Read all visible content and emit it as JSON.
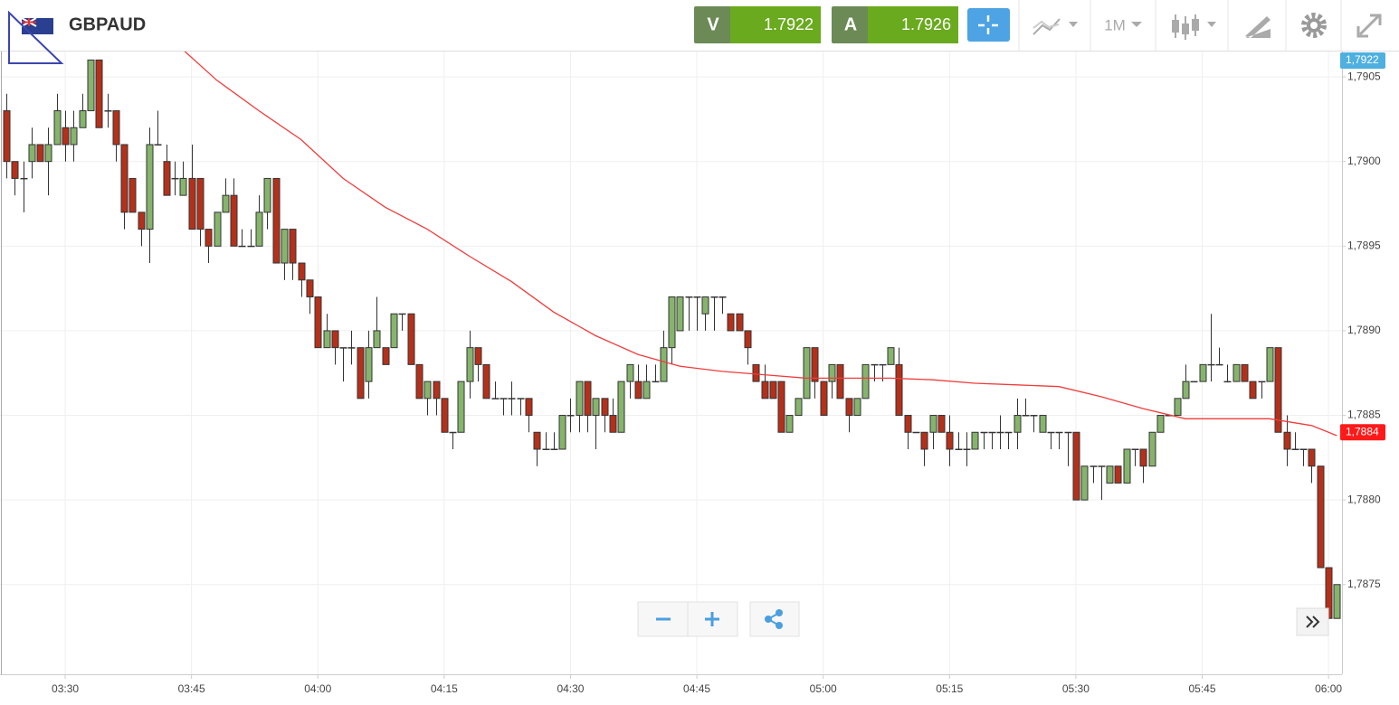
{
  "toolbar": {
    "bid_label": "V",
    "bid": 1.7922,
    "ask_label": "A",
    "ask": 1.7926,
    "timeframe": "1M"
  },
  "chart_data": {
    "type": "candlestick",
    "title": "GBPAUD",
    "up_color": "#86b46c",
    "down_color": "#b5301a",
    "xlim": [
      202.26,
      361.6
    ],
    "ylim": [
      1.78697,
      1.79065
    ],
    "xticks": [
      {
        "value": 210,
        "label": "03:30"
      },
      {
        "value": 225,
        "label": "03:45"
      },
      {
        "value": 240,
        "label": "04:00"
      },
      {
        "value": 255,
        "label": "04:15"
      },
      {
        "value": 270,
        "label": "04:30"
      },
      {
        "value": 285,
        "label": "04:45"
      },
      {
        "value": 300,
        "label": "05:00"
      },
      {
        "value": 315,
        "label": "05:15"
      },
      {
        "value": 330,
        "label": "05:30"
      },
      {
        "value": 345,
        "label": "05:45"
      },
      {
        "value": 360,
        "label": "06:00"
      }
    ],
    "yticks": [
      {
        "value": 1.7875,
        "label": "1,7875"
      },
      {
        "value": 1.788,
        "label": "1,7880"
      },
      {
        "value": 1.7885,
        "label": "1,7885"
      },
      {
        "value": 1.789,
        "label": "1,7890"
      },
      {
        "value": 1.7895,
        "label": "1,7895"
      },
      {
        "value": 1.79,
        "label": "1,7900"
      },
      {
        "value": 1.7905,
        "label": "1,7905"
      }
    ],
    "grid": true,
    "x": [
      203,
      204,
      205,
      206,
      207,
      208,
      209,
      210,
      211,
      212,
      213,
      214,
      215,
      216,
      217,
      218,
      219,
      220,
      221,
      222,
      223,
      224,
      225,
      226,
      227,
      228,
      229,
      230,
      231,
      232,
      233,
      234,
      235,
      236,
      237,
      238,
      239,
      240,
      241,
      242,
      243,
      244,
      245,
      246,
      247,
      248,
      249,
      250,
      251,
      252,
      253,
      254,
      255,
      256,
      257,
      258,
      259,
      260,
      261,
      262,
      263,
      264,
      265,
      266,
      267,
      268,
      269,
      270,
      271,
      272,
      273,
      274,
      275,
      276,
      277,
      278,
      279,
      280,
      281,
      282,
      283,
      284,
      285,
      286,
      287,
      288,
      289,
      290,
      291,
      292,
      293,
      294,
      295,
      296,
      297,
      298,
      299,
      300,
      301,
      302,
      303,
      304,
      305,
      306,
      307,
      308,
      309,
      310,
      311,
      312,
      313,
      314,
      315,
      316,
      317,
      318,
      319,
      320,
      321,
      322,
      323,
      324,
      325,
      326,
      327,
      328,
      329,
      330,
      331,
      332,
      333,
      334,
      335,
      336,
      337,
      338,
      339,
      340,
      341,
      342,
      343,
      344,
      345,
      346,
      347,
      348,
      349,
      350,
      351,
      352,
      353,
      354,
      355,
      356,
      357,
      358,
      359,
      360,
      361
    ],
    "open": [
      1.7903,
      1.79,
      1.7899,
      1.79,
      1.7901,
      1.79,
      1.7901,
      1.7902,
      1.7901,
      1.7902,
      1.7903,
      1.7906,
      1.7903,
      1.7903,
      1.7901,
      1.7899,
      1.7897,
      1.7896,
      1.7901,
      1.79,
      1.7899,
      1.7898,
      1.7899,
      1.7899,
      1.7896,
      1.7895,
      1.7897,
      1.7898,
      1.7895,
      1.7895,
      1.7895,
      1.7897,
      1.7899,
      1.7894,
      1.7896,
      1.7894,
      1.7893,
      1.7892,
      1.7889,
      1.789,
      1.7889,
      1.7889,
      1.7889,
      1.7887,
      1.7889,
      1.7889,
      1.7889,
      1.7891,
      1.7891,
      1.7888,
      1.7886,
      1.7887,
      1.7886,
      1.7884,
      1.7884,
      1.7887,
      1.7889,
      1.7888,
      1.7886,
      1.7886,
      1.7886,
      1.7886,
      1.7886,
      1.7884,
      1.7883,
      1.7883,
      1.7883,
      1.7885,
      1.7885,
      1.7887,
      1.7885,
      1.7886,
      1.7885,
      1.7884,
      1.7887,
      1.7887,
      1.7886,
      1.7887,
      1.7887,
      1.7889,
      1.789,
      1.7892,
      1.7892,
      1.7891,
      1.7892,
      1.7892,
      1.7891,
      1.7891,
      1.789,
      1.7888,
      1.7887,
      1.7887,
      1.7887,
      1.7884,
      1.7885,
      1.7886,
      1.7889,
      1.7887,
      1.7887,
      1.7888,
      1.7886,
      1.7885,
      1.7886,
      1.7888,
      1.7888,
      1.7888,
      1.7888,
      1.7885,
      1.7884,
      1.7884,
      1.7884,
      1.7885,
      1.7884,
      1.7883,
      1.7883,
      1.7883,
      1.7884,
      1.7884,
      1.7884,
      1.7884,
      1.7884,
      1.7885,
      1.7885,
      1.7884,
      1.7884,
      1.7884,
      1.7884,
      1.7884,
      1.788,
      1.7882,
      1.7882,
      1.7881,
      1.7882,
      1.7881,
      1.7883,
      1.7883,
      1.7882,
      1.7884,
      1.7885,
      1.7885,
      1.7886,
      1.7887,
      1.7887,
      1.7888,
      1.7888,
      1.7887,
      1.7887,
      1.7888,
      1.7887,
      1.7887,
      1.7887,
      1.7889,
      1.7884,
      1.7883,
      1.7883,
      1.7883,
      1.7882,
      1.7876,
      1.7873
    ],
    "high": [
      1.7904,
      1.79,
      1.79,
      1.7902,
      1.7901,
      1.7902,
      1.7904,
      1.7903,
      1.7903,
      1.7904,
      1.7906,
      1.7906,
      1.7904,
      1.7903,
      1.7901,
      1.7899,
      1.7897,
      1.7902,
      1.7903,
      1.7901,
      1.79,
      1.79,
      1.7901,
      1.7899,
      1.7896,
      1.7897,
      1.7899,
      1.7899,
      1.7896,
      1.7896,
      1.7898,
      1.7899,
      1.7899,
      1.7896,
      1.7896,
      1.7894,
      1.7893,
      1.7892,
      1.7891,
      1.789,
      1.7889,
      1.789,
      1.7889,
      1.789,
      1.7892,
      1.7889,
      1.7891,
      1.7891,
      1.7891,
      1.7888,
      1.7887,
      1.7887,
      1.7886,
      1.7884,
      1.7887,
      1.789,
      1.7889,
      1.7888,
      1.7887,
      1.7886,
      1.7887,
      1.7886,
      1.7886,
      1.7884,
      1.7884,
      1.7884,
      1.7885,
      1.7886,
      1.7887,
      1.7887,
      1.7886,
      1.7886,
      1.7886,
      1.7887,
      1.7888,
      1.7888,
      1.7888,
      1.7888,
      1.789,
      1.7892,
      1.7892,
      1.7892,
      1.7892,
      1.7892,
      1.7892,
      1.7892,
      1.7891,
      1.7891,
      1.789,
      1.7888,
      1.7888,
      1.7887,
      1.7887,
      1.7885,
      1.7886,
      1.7889,
      1.7889,
      1.7887,
      1.7888,
      1.7888,
      1.7886,
      1.7886,
      1.7888,
      1.7888,
      1.7888,
      1.7889,
      1.7889,
      1.7885,
      1.7884,
      1.7884,
      1.7885,
      1.7885,
      1.7885,
      1.7884,
      1.7884,
      1.7884,
      1.7884,
      1.7884,
      1.7885,
      1.7884,
      1.7886,
      1.7886,
      1.7885,
      1.7885,
      1.7884,
      1.7884,
      1.7884,
      1.7884,
      1.7882,
      1.7882,
      1.7882,
      1.7882,
      1.7882,
      1.7883,
      1.7883,
      1.7883,
      1.7884,
      1.7885,
      1.7885,
      1.7886,
      1.7888,
      1.7887,
      1.7888,
      1.7891,
      1.7889,
      1.7888,
      1.7888,
      1.7888,
      1.7887,
      1.7887,
      1.7889,
      1.7889,
      1.7885,
      1.7884,
      1.7883,
      1.7883,
      1.7882,
      1.7876,
      1.7875
    ],
    "low": [
      1.7899,
      1.7898,
      1.7897,
      1.7899,
      1.79,
      1.7898,
      1.7901,
      1.79,
      1.79,
      1.7902,
      1.7903,
      1.7902,
      1.7902,
      1.79,
      1.7896,
      1.7897,
      1.7895,
      1.7894,
      1.7901,
      1.7898,
      1.7898,
      1.7898,
      1.7896,
      1.7895,
      1.7894,
      1.7895,
      1.7897,
      1.7895,
      1.7895,
      1.7895,
      1.7895,
      1.7896,
      1.7894,
      1.7893,
      1.7893,
      1.7892,
      1.7891,
      1.7889,
      1.7889,
      1.7888,
      1.7887,
      1.7888,
      1.7886,
      1.7886,
      1.7889,
      1.7888,
      1.7889,
      1.789,
      1.7888,
      1.7886,
      1.7885,
      1.7885,
      1.7884,
      1.7883,
      1.7884,
      1.7886,
      1.7887,
      1.7886,
      1.7886,
      1.7885,
      1.7885,
      1.7885,
      1.7884,
      1.7882,
      1.7883,
      1.7883,
      1.7883,
      1.7884,
      1.7884,
      1.7884,
      1.7883,
      1.7884,
      1.7884,
      1.7884,
      1.7886,
      1.7886,
      1.7886,
      1.7887,
      1.7887,
      1.7888,
      1.789,
      1.789,
      1.789,
      1.789,
      1.789,
      1.7891,
      1.789,
      1.789,
      1.7888,
      1.7887,
      1.7886,
      1.7886,
      1.7884,
      1.7884,
      1.7885,
      1.7886,
      1.7886,
      1.7885,
      1.7886,
      1.7886,
      1.7884,
      1.7885,
      1.7886,
      1.7887,
      1.7887,
      1.7888,
      1.7885,
      1.7883,
      1.7884,
      1.7882,
      1.7883,
      1.7884,
      1.7882,
      1.7883,
      1.7882,
      1.7883,
      1.7883,
      1.7883,
      1.7883,
      1.7883,
      1.7883,
      1.7885,
      1.7884,
      1.7884,
      1.7883,
      1.7883,
      1.7882,
      1.788,
      1.788,
      1.7881,
      1.788,
      1.7881,
      1.7881,
      1.7881,
      1.7882,
      1.7881,
      1.7882,
      1.7884,
      1.7885,
      1.7885,
      1.7886,
      1.7887,
      1.7887,
      1.7887,
      1.7888,
      1.7887,
      1.7887,
      1.7887,
      1.7886,
      1.7886,
      1.7887,
      1.7884,
      1.7882,
      1.7883,
      1.7882,
      1.7881,
      1.7876,
      1.7873,
      1.7873
    ],
    "close": [
      1.79,
      1.7899,
      1.7899,
      1.7901,
      1.79,
      1.7901,
      1.7903,
      1.7901,
      1.7902,
      1.7903,
      1.7906,
      1.7902,
      1.7903,
      1.7901,
      1.7897,
      1.7897,
      1.7896,
      1.7901,
      1.7901,
      1.7898,
      1.7899,
      1.7899,
      1.7896,
      1.7896,
      1.7895,
      1.7897,
      1.7898,
      1.7895,
      1.7895,
      1.7895,
      1.7897,
      1.7899,
      1.7894,
      1.7896,
      1.7894,
      1.7893,
      1.7892,
      1.7889,
      1.789,
      1.7889,
      1.7889,
      1.7889,
      1.7886,
      1.7889,
      1.789,
      1.7888,
      1.7891,
      1.7891,
      1.7888,
      1.7886,
      1.7887,
      1.7886,
      1.7884,
      1.7884,
      1.7887,
      1.7889,
      1.7888,
      1.7886,
      1.7886,
      1.7886,
      1.7886,
      1.7886,
      1.7885,
      1.7883,
      1.7883,
      1.7883,
      1.7885,
      1.7885,
      1.7887,
      1.7885,
      1.7886,
      1.7885,
      1.7884,
      1.7887,
      1.7888,
      1.7886,
      1.7887,
      1.7887,
      1.7889,
      1.7892,
      1.7892,
      1.7892,
      1.7892,
      1.7892,
      1.7892,
      1.7892,
      1.789,
      1.789,
      1.7889,
      1.7887,
      1.7886,
      1.7886,
      1.7884,
      1.7885,
      1.7886,
      1.7889,
      1.7887,
      1.7885,
      1.7888,
      1.7886,
      1.7885,
      1.7886,
      1.7888,
      1.7888,
      1.7888,
      1.7889,
      1.7885,
      1.7884,
      1.7884,
      1.7883,
      1.7885,
      1.7884,
      1.7883,
      1.7883,
      1.7883,
      1.7884,
      1.7884,
      1.7884,
      1.7884,
      1.7884,
      1.7885,
      1.7885,
      1.7885,
      1.7885,
      1.7884,
      1.7884,
      1.7884,
      1.788,
      1.7882,
      1.7882,
      1.7882,
      1.7882,
      1.7881,
      1.7883,
      1.7883,
      1.7882,
      1.7884,
      1.7885,
      1.7885,
      1.7886,
      1.7887,
      1.7887,
      1.7888,
      1.7888,
      1.7888,
      1.7887,
      1.7888,
      1.7887,
      1.7886,
      1.7887,
      1.7889,
      1.7884,
      1.7883,
      1.7883,
      1.7883,
      1.7882,
      1.7876,
      1.7873,
      1.7875
    ],
    "overlay": {
      "type": "line",
      "color": "#f03c3c",
      "x": [
        203,
        224,
        228,
        233,
        238,
        243,
        248,
        253,
        258,
        263,
        268,
        273,
        278,
        283,
        288,
        293,
        298,
        303,
        308,
        313,
        318,
        323,
        328,
        333,
        338,
        343,
        348,
        353,
        358,
        361
      ],
      "values": [
        1.79159,
        1.79066,
        1.79048,
        1.7903,
        1.79013,
        1.7899,
        1.78973,
        1.7896,
        1.78944,
        1.78929,
        1.78911,
        1.78897,
        1.78886,
        1.78879,
        1.78876,
        1.78874,
        1.78872,
        1.78872,
        1.78872,
        1.78871,
        1.78869,
        1.78868,
        1.78867,
        1.78861,
        1.78854,
        1.78848,
        1.78848,
        1.78848,
        1.78844,
        1.78838
      ]
    },
    "bid_tag": {
      "value": 1.7922,
      "label": "1,7922",
      "color": "#4fb0e0"
    },
    "ma_tag": {
      "value": 1.7884,
      "label": "1,7884",
      "color": "#ff1a1a"
    }
  }
}
